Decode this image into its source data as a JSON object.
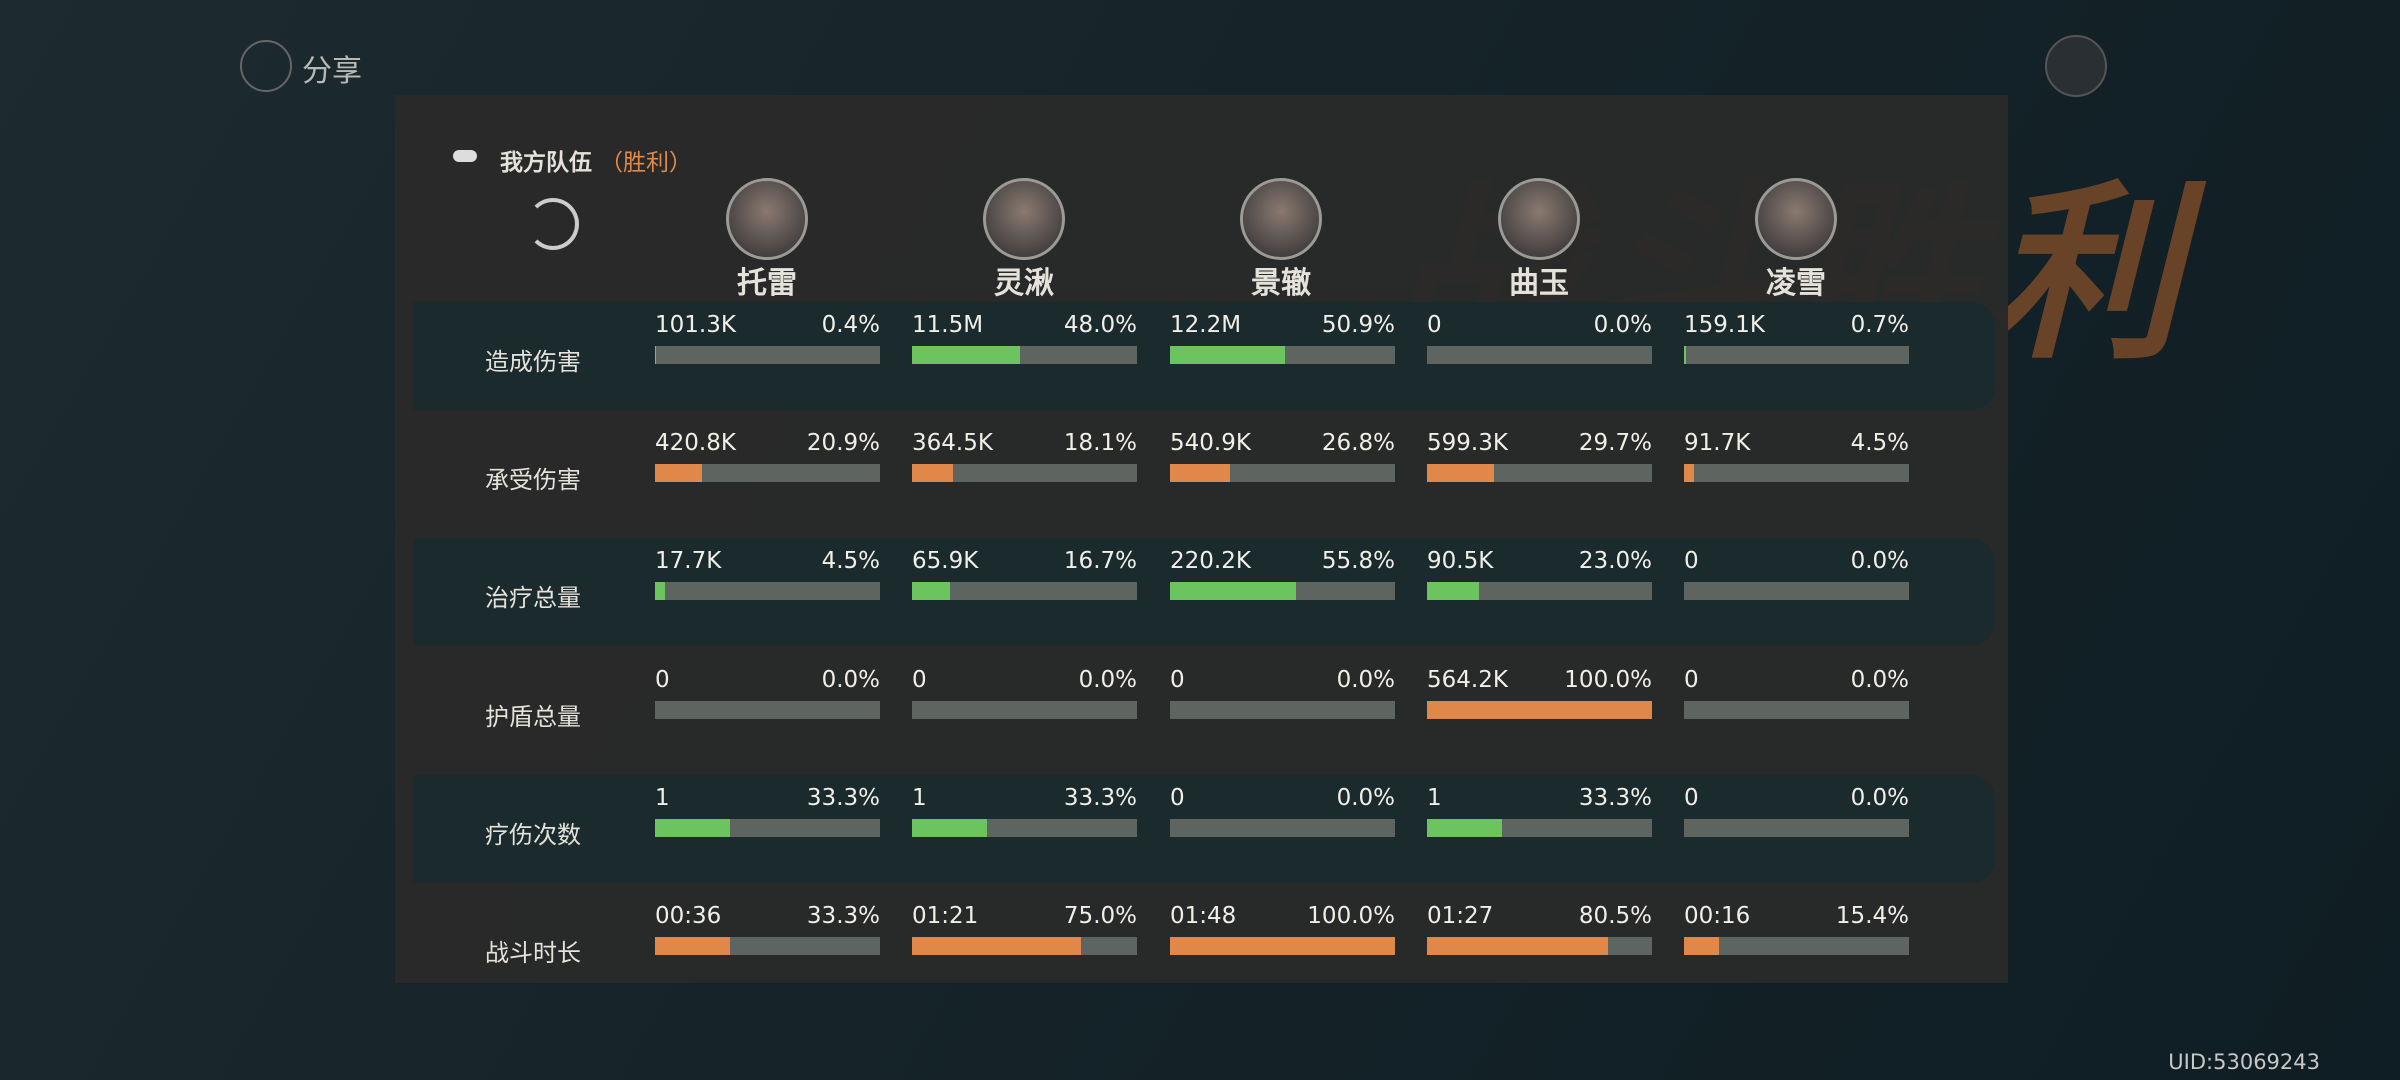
{
  "share": "分享",
  "background_title": "战斗胜利",
  "team": {
    "title": "我方队伍",
    "result": "（胜利）"
  },
  "characters": [
    "托雷",
    "灵湫",
    "景辙",
    "曲玉",
    "凌雪"
  ],
  "rows": [
    {
      "label": "造成伤害",
      "cells": [
        {
          "value": "101.3K",
          "percent": 0.4,
          "percent_label": "0.4%"
        },
        {
          "value": "11.5M",
          "percent": 48.0,
          "percent_label": "48.0%"
        },
        {
          "value": "12.2M",
          "percent": 50.9,
          "percent_label": "50.9%"
        },
        {
          "value": "0",
          "percent": 0,
          "percent_label": "0.0%"
        },
        {
          "value": "159.1K",
          "percent": 0.7,
          "percent_label": "0.7%"
        }
      ]
    },
    {
      "label": "承受伤害",
      "cells": [
        {
          "value": "420.8K",
          "percent": 20.9,
          "percent_label": "20.9%"
        },
        {
          "value": "364.5K",
          "percent": 18.1,
          "percent_label": "18.1%"
        },
        {
          "value": "540.9K",
          "percent": 26.8,
          "percent_label": "26.8%"
        },
        {
          "value": "599.3K",
          "percent": 29.7,
          "percent_label": "29.7%"
        },
        {
          "value": "91.7K",
          "percent": 4.5,
          "percent_label": "4.5%"
        }
      ]
    },
    {
      "label": "治疗总量",
      "cells": [
        {
          "value": "17.7K",
          "percent": 4.5,
          "percent_label": "4.5%"
        },
        {
          "value": "65.9K",
          "percent": 16.7,
          "percent_label": "16.7%"
        },
        {
          "value": "220.2K",
          "percent": 55.8,
          "percent_label": "55.8%"
        },
        {
          "value": "90.5K",
          "percent": 23.0,
          "percent_label": "23.0%"
        },
        {
          "value": "0",
          "percent": 0,
          "percent_label": "0.0%"
        }
      ]
    },
    {
      "label": "护盾总量",
      "cells": [
        {
          "value": "0",
          "percent": 0,
          "percent_label": "0.0%"
        },
        {
          "value": "0",
          "percent": 0,
          "percent_label": "0.0%"
        },
        {
          "value": "0",
          "percent": 0,
          "percent_label": "0.0%"
        },
        {
          "value": "564.2K",
          "percent": 100.0,
          "percent_label": "100.0%"
        },
        {
          "value": "0",
          "percent": 0,
          "percent_label": "0.0%"
        }
      ]
    },
    {
      "label": "疗伤次数",
      "cells": [
        {
          "value": "1",
          "percent": 33.3,
          "percent_label": "33.3%"
        },
        {
          "value": "1",
          "percent": 33.3,
          "percent_label": "33.3%"
        },
        {
          "value": "0",
          "percent": 0,
          "percent_label": "0.0%"
        },
        {
          "value": "1",
          "percent": 33.3,
          "percent_label": "33.3%"
        },
        {
          "value": "0",
          "percent": 0,
          "percent_label": "0.0%"
        }
      ]
    },
    {
      "label": "战斗时长",
      "cells": [
        {
          "value": "00:36",
          "percent": 33.3,
          "percent_label": "33.3%"
        },
        {
          "value": "01:21",
          "percent": 75.0,
          "percent_label": "75.0%"
        },
        {
          "value": "01:48",
          "percent": 100.0,
          "percent_label": "100.0%"
        },
        {
          "value": "01:27",
          "percent": 80.5,
          "percent_label": "80.5%"
        },
        {
          "value": "00:16",
          "percent": 15.4,
          "percent_label": "15.4%"
        }
      ]
    }
  ],
  "uid": "UID:53069243"
}
